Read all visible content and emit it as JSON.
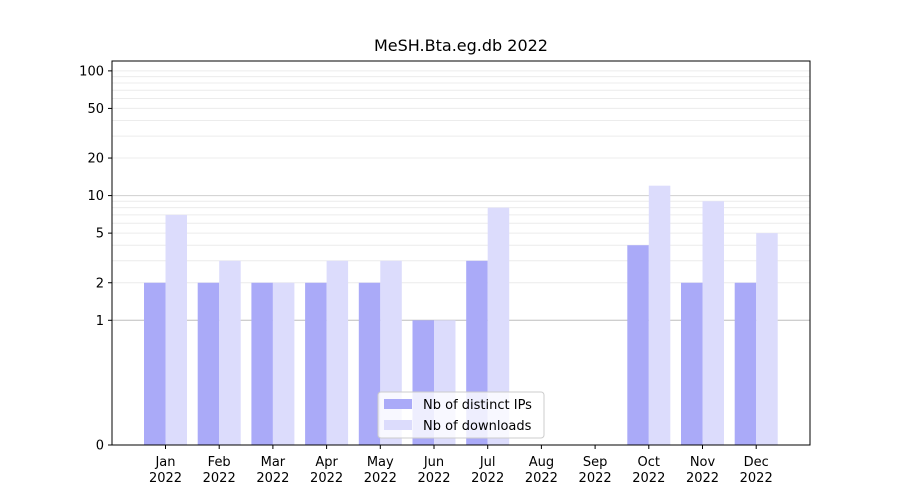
{
  "chart_data": {
    "type": "bar",
    "title": "MeSH.Bta.eg.db 2022",
    "yscale": "symlog",
    "ylim": [
      0,
      120
    ],
    "yticks": [
      0,
      1,
      2,
      5,
      10,
      20,
      50,
      100
    ],
    "categories": [
      "Jan\n2022",
      "Feb\n2022",
      "Mar\n2022",
      "Apr\n2022",
      "May\n2022",
      "Jun\n2022",
      "Jul\n2022",
      "Aug\n2022",
      "Sep\n2022",
      "Oct\n2022",
      "Nov\n2022",
      "Dec\n2022"
    ],
    "series": [
      {
        "name": "Nb of distinct IPs",
        "color": "#aaaaf8",
        "values": [
          2,
          2,
          2,
          2,
          2,
          1,
          3,
          0,
          0,
          4,
          2,
          2
        ]
      },
      {
        "name": "Nb of downloads",
        "color": "#dcdcfc",
        "values": [
          7,
          3,
          2,
          3,
          3,
          1,
          8,
          0,
          0,
          12,
          9,
          5
        ]
      }
    ],
    "legend": "lower-center",
    "grid": true
  }
}
